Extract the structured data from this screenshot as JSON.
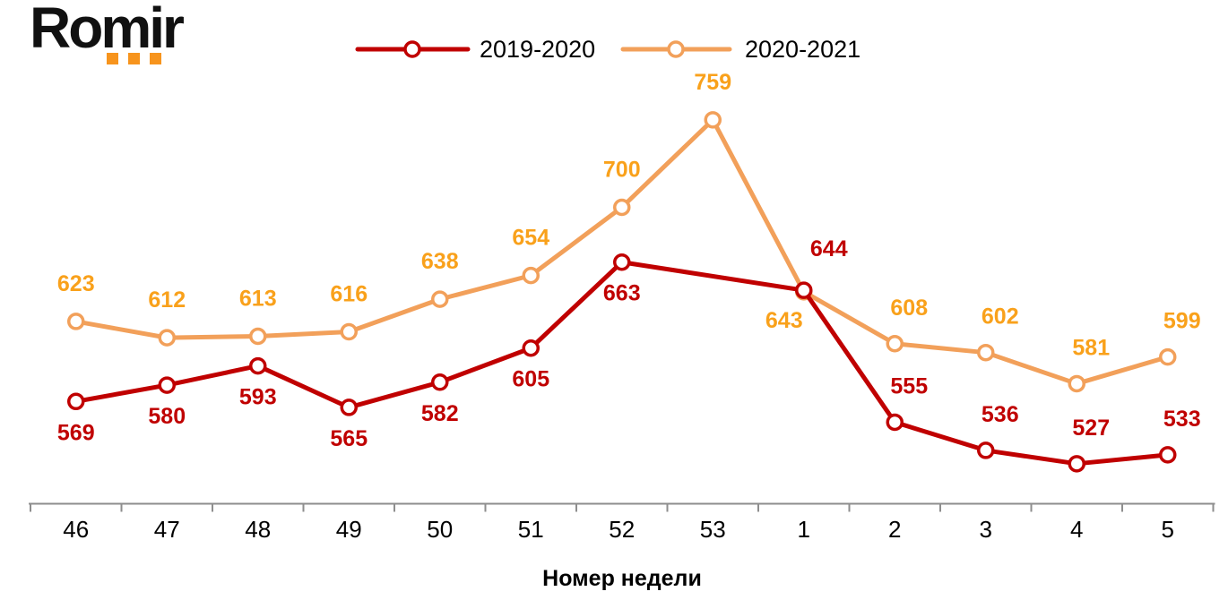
{
  "logo": {
    "text": "Romir",
    "dot_color": "#F7941D"
  },
  "chart_data": {
    "type": "line",
    "title": "",
    "xlabel": "Номер недели",
    "ylabel": "",
    "categories": [
      "46",
      "47",
      "48",
      "49",
      "50",
      "51",
      "52",
      "53",
      "1",
      "2",
      "3",
      "4",
      "5"
    ],
    "series": [
      {
        "name": "2019-2020",
        "color": "#C00000",
        "label_color": "#C00000",
        "values": [
          569,
          580,
          593,
          565,
          582,
          605,
          663,
          null,
          644,
          555,
          536,
          527,
          533
        ],
        "label_pos": [
          "below",
          "below",
          "below",
          "below",
          "below",
          "below",
          "below",
          null,
          "above-right",
          "above-r",
          "above-r",
          "above-r",
          "above-r"
        ]
      },
      {
        "name": "2020-2021",
        "color": "#F2A05A",
        "label_color": "#F9A11B",
        "values": [
          623,
          612,
          613,
          616,
          638,
          654,
          700,
          759,
          643,
          608,
          602,
          581,
          599
        ],
        "label_pos": [
          "above",
          "above",
          "above",
          "above",
          "above",
          "above",
          "above",
          "above",
          "below-left",
          "above-r",
          "above-r",
          "above-r",
          "above-r"
        ]
      }
    ],
    "legend_position": "top",
    "grid": false,
    "y_axis_visible": false,
    "x_axis": {
      "line_color": "#8e8e8e",
      "tick_label_color": "#000000",
      "tick_marks": "below-line"
    },
    "value_range_hint": [
      500,
      780
    ]
  }
}
